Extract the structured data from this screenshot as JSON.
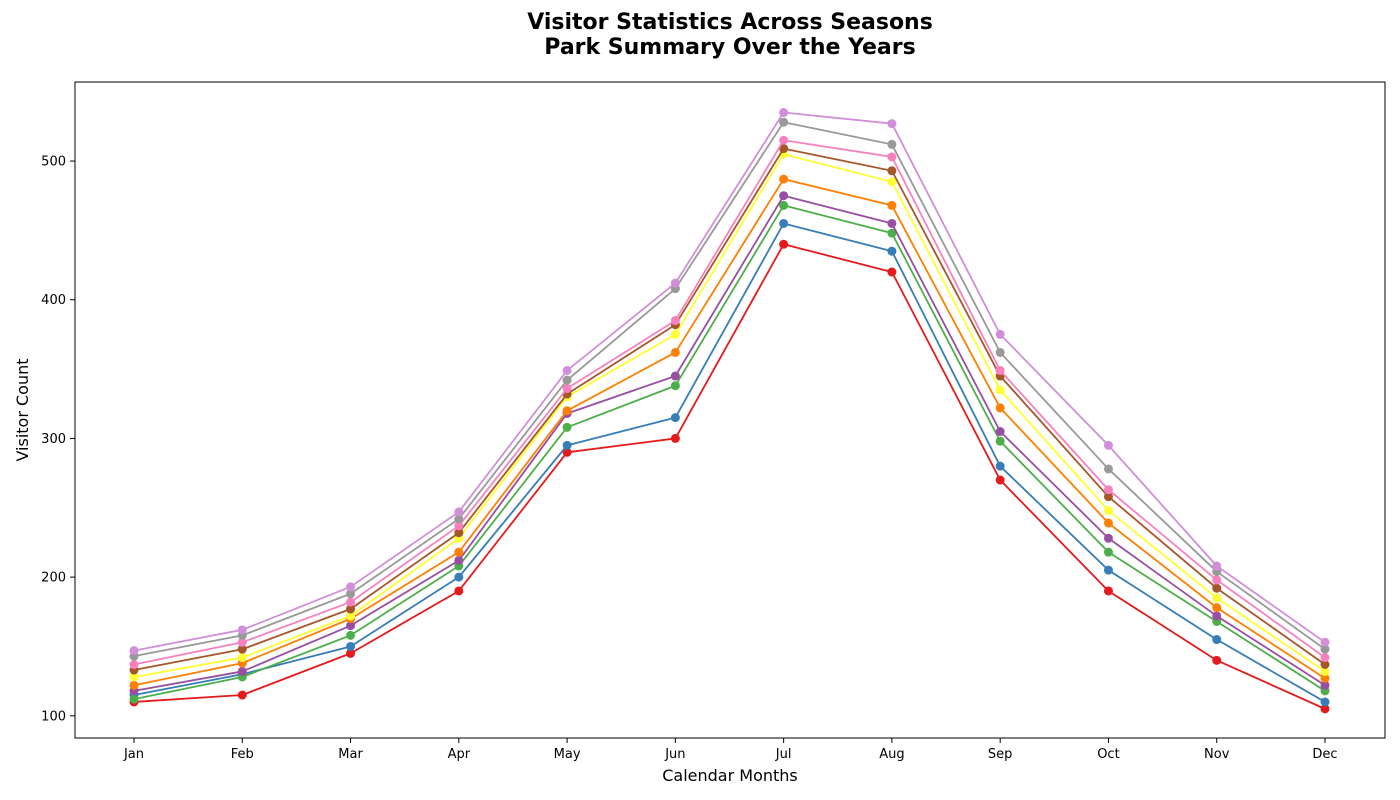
{
  "chart_data": {
    "type": "line",
    "title": "Visitor Statistics Across Seasons",
    "subtitle": "Park Summary Over the Years",
    "xlabel": "Calendar Months",
    "ylabel": "Visitor Count",
    "categories": [
      "Jan",
      "Feb",
      "Mar",
      "Apr",
      "May",
      "Jun",
      "Jul",
      "Aug",
      "Sep",
      "Oct",
      "Nov",
      "Dec"
    ],
    "ylim": [
      84,
      557
    ],
    "yticks": [
      100,
      200,
      300,
      400,
      500
    ],
    "grid": false,
    "legend": "none",
    "series": [
      {
        "color": "#e41a1c",
        "values": [
          110,
          115,
          145,
          190,
          290,
          300,
          440,
          420,
          270,
          190,
          140,
          105
        ]
      },
      {
        "color": "#377eb8",
        "values": [
          115,
          130,
          150,
          200,
          295,
          315,
          455,
          435,
          280,
          205,
          155,
          110
        ]
      },
      {
        "color": "#4daf4a",
        "values": [
          112,
          128,
          158,
          208,
          308,
          338,
          468,
          448,
          298,
          218,
          168,
          118
        ]
      },
      {
        "color": "#984ea3",
        "values": [
          118,
          132,
          165,
          212,
          318,
          345,
          475,
          455,
          305,
          228,
          172,
          122
        ]
      },
      {
        "color": "#ff7f00",
        "values": [
          122,
          138,
          170,
          218,
          320,
          362,
          487,
          468,
          322,
          239,
          178,
          127
        ]
      },
      {
        "color": "#ffff33",
        "values": [
          128,
          142,
          172,
          228,
          330,
          375,
          505,
          485,
          335,
          248,
          185,
          132
        ]
      },
      {
        "color": "#a65628",
        "values": [
          133,
          148,
          177,
          232,
          332,
          382,
          509,
          493,
          345,
          258,
          192,
          137
        ]
      },
      {
        "color": "#f781bf",
        "values": [
          137,
          153,
          182,
          237,
          336,
          385,
          515,
          503,
          349,
          263,
          198,
          142
        ]
      },
      {
        "color": "#999999",
        "values": [
          143,
          158,
          188,
          242,
          342,
          408,
          528,
          512,
          362,
          278,
          204,
          148
        ]
      },
      {
        "color": "#d08fd8",
        "values": [
          147,
          162,
          193,
          247,
          349,
          412,
          535,
          527,
          375,
          295,
          208,
          153
        ]
      }
    ]
  }
}
